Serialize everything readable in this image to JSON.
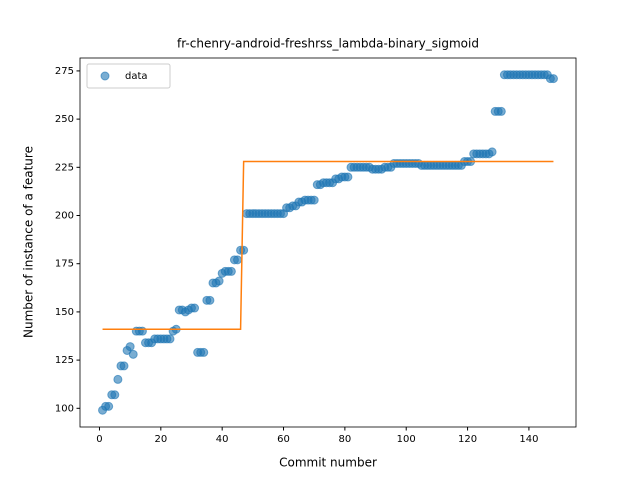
{
  "chart_data": {
    "type": "scatter",
    "title": "fr-chenry-android-freshrss_lambda-binary_sigmoid",
    "x_label": "Commit number",
    "y_label": "Number of instance of a feature",
    "xlim": [
      -6.35,
      155.35
    ],
    "ylim": [
      90.3,
      281.7
    ],
    "xticks": [
      0,
      20,
      40,
      60,
      80,
      100,
      120,
      140
    ],
    "yticks": [
      100,
      125,
      150,
      175,
      200,
      225,
      250,
      275
    ],
    "legend": "upper left",
    "series": [
      {
        "name": "data",
        "type": "scatter",
        "color": "#1f77b4",
        "x": [
          1,
          2,
          3,
          4,
          5,
          6,
          7,
          8,
          9,
          10,
          11,
          12,
          13,
          14,
          15,
          16,
          17,
          18,
          19,
          20,
          21,
          22,
          23,
          24,
          25,
          26,
          27,
          28,
          29,
          30,
          31,
          32,
          33,
          34,
          35,
          36,
          37,
          38,
          39,
          40,
          41,
          42,
          43,
          44,
          45,
          46,
          47,
          48,
          49,
          50,
          51,
          52,
          53,
          54,
          55,
          56,
          57,
          58,
          59,
          60,
          61,
          62,
          63,
          64,
          65,
          66,
          67,
          68,
          69,
          70,
          71,
          72,
          73,
          74,
          75,
          76,
          77,
          78,
          79,
          80,
          81,
          82,
          83,
          84,
          85,
          86,
          87,
          88,
          89,
          90,
          91,
          92,
          93,
          94,
          95,
          96,
          97,
          98,
          99,
          100,
          101,
          102,
          103,
          104,
          105,
          106,
          107,
          108,
          109,
          110,
          111,
          112,
          113,
          114,
          115,
          116,
          117,
          118,
          119,
          120,
          121,
          122,
          123,
          124,
          125,
          126,
          127,
          128,
          129,
          130,
          131,
          132,
          133,
          134,
          135,
          136,
          137,
          138,
          139,
          140,
          141,
          142,
          143,
          144,
          145,
          146,
          147,
          148
        ],
        "values": [
          99,
          101,
          101,
          107,
          107,
          115,
          122,
          122,
          130,
          132,
          128,
          140,
          140,
          140,
          134,
          134,
          134,
          136,
          136,
          136,
          136,
          136,
          136,
          140,
          141,
          151,
          151,
          150,
          151,
          152,
          152,
          129,
          129,
          129,
          156,
          156,
          165,
          165,
          166,
          170,
          171,
          171,
          171,
          177,
          177,
          182,
          182,
          201,
          201,
          201,
          201,
          201,
          201,
          201,
          201,
          201,
          201,
          201,
          201,
          201,
          204,
          204,
          205,
          205,
          207,
          207,
          208,
          208,
          208,
          208,
          216,
          216,
          217,
          217,
          217,
          217,
          219,
          219,
          220,
          220,
          220,
          225,
          225,
          225,
          225,
          225,
          225,
          225,
          224,
          224,
          224,
          224,
          225,
          225,
          225,
          227,
          227,
          227,
          227,
          227,
          227,
          227,
          227,
          227,
          226,
          226,
          226,
          226,
          226,
          226,
          226,
          226,
          226,
          226,
          226,
          226,
          226,
          226,
          228,
          228,
          228,
          232,
          232,
          232,
          232,
          232,
          232,
          233,
          254,
          254,
          254,
          273,
          273,
          273,
          273,
          273,
          273,
          273,
          273,
          273,
          273,
          273,
          273,
          273,
          273,
          273,
          271,
          271
        ]
      },
      {
        "type": "line",
        "color": "#ff7f0e",
        "x": [
          1,
          46,
          47,
          148
        ],
        "values": [
          141,
          141,
          228,
          228
        ]
      }
    ]
  }
}
